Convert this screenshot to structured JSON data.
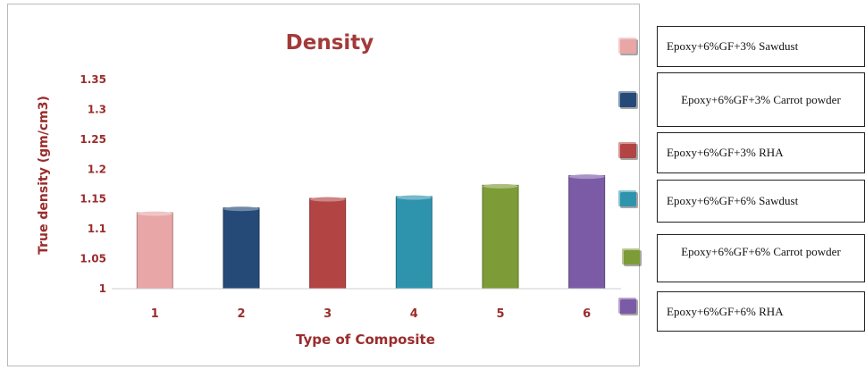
{
  "chart_data": {
    "type": "bar",
    "title": "Density",
    "xlabel": "Type of Composite",
    "ylabel": "True density (gm/cm3)",
    "categories": [
      "1",
      "2",
      "3",
      "4",
      "5",
      "6"
    ],
    "values": [
      1.127,
      1.135,
      1.151,
      1.154,
      1.173,
      1.189
    ],
    "ylim": [
      1,
      1.35
    ],
    "yticks": [
      "1",
      "1.05",
      "1.1",
      "1.15",
      "1.2",
      "1.25",
      "1.3",
      "1.35"
    ],
    "bar_colors": [
      "#e8a6a6",
      "#254a77",
      "#b24444",
      "#2e93ad",
      "#7d9b37",
      "#7b5aa6"
    ],
    "grid": false,
    "legend_placement": "right"
  },
  "legend": [
    {
      "text": "Epoxy+6%GF+3% Sawdust",
      "color": "#e8a6a6"
    },
    {
      "text": "Epoxy+6%GF+3% Carrot powder",
      "color": "#254a77"
    },
    {
      "text": "Epoxy+6%GF+3% RHA",
      "color": "#b24444"
    },
    {
      "text": "Epoxy+6%GF+6% Sawdust",
      "color": "#2e93ad"
    },
    {
      "text": "Epoxy+6%GF+6% Carrot powder",
      "color": "#7d9b37"
    },
    {
      "text": "Epoxy+6%GF+6% RHA",
      "color": "#7b5aa6"
    }
  ]
}
